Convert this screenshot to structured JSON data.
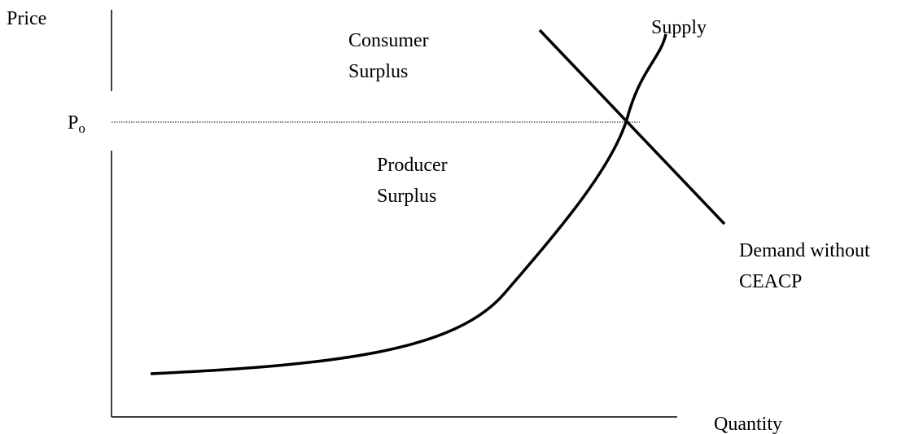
{
  "axes": {
    "y_label": "Price",
    "x_label": "Quantity"
  },
  "price_level": {
    "label": "P",
    "subscript": "o"
  },
  "regions": [
    {
      "lines": [
        "Consumer",
        "Surplus"
      ]
    },
    {
      "lines": [
        "Producer",
        "Surplus"
      ]
    }
  ],
  "curves": {
    "supply": {
      "label": "Supply"
    },
    "demand": {
      "lines": [
        "Demand without",
        "CEACP"
      ]
    }
  }
}
